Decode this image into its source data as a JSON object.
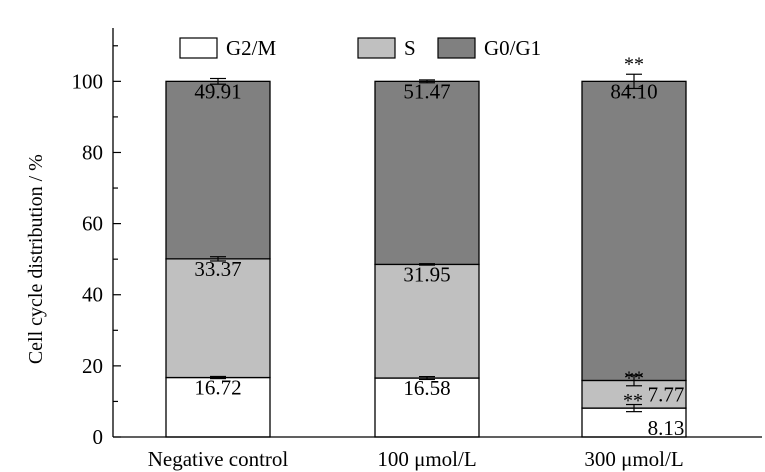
{
  "chart_data": {
    "type": "bar",
    "stacked": true,
    "title": "",
    "xlabel": "",
    "ylabel": "Cell cycle distribution / %",
    "ylim": [
      0,
      115
    ],
    "yticks": [
      0,
      20,
      40,
      60,
      80,
      100
    ],
    "grid": false,
    "legend_position": "top",
    "categories": [
      "Negative control",
      "100 μmol/L",
      "300 μmol/L"
    ],
    "series": [
      {
        "name": "G2/M",
        "color": "#ffffff",
        "values": [
          16.72,
          16.58,
          8.13
        ],
        "labels": [
          "16.72",
          "16.58",
          "8.13"
        ],
        "errors": [
          0.3,
          0.4,
          1.0
        ]
      },
      {
        "name": "S",
        "color": "#c0c0c0",
        "values": [
          33.37,
          31.95,
          7.77
        ],
        "labels": [
          "33.37",
          "31.95",
          "7.77"
        ],
        "errors": [
          0.6,
          0.2,
          1.5
        ]
      },
      {
        "name": "G0/G1",
        "color": "#808080",
        "values": [
          49.91,
          51.47,
          84.1
        ],
        "labels": [
          "49.91",
          "51.47",
          "84.10"
        ],
        "errors": [
          0.8,
          0.4,
          2.0
        ]
      }
    ],
    "annotations": [
      {
        "category": 2,
        "series": 0,
        "text": "**"
      },
      {
        "category": 2,
        "series": 1,
        "text": "**"
      },
      {
        "category": 2,
        "series": 2,
        "text": "**"
      }
    ]
  }
}
